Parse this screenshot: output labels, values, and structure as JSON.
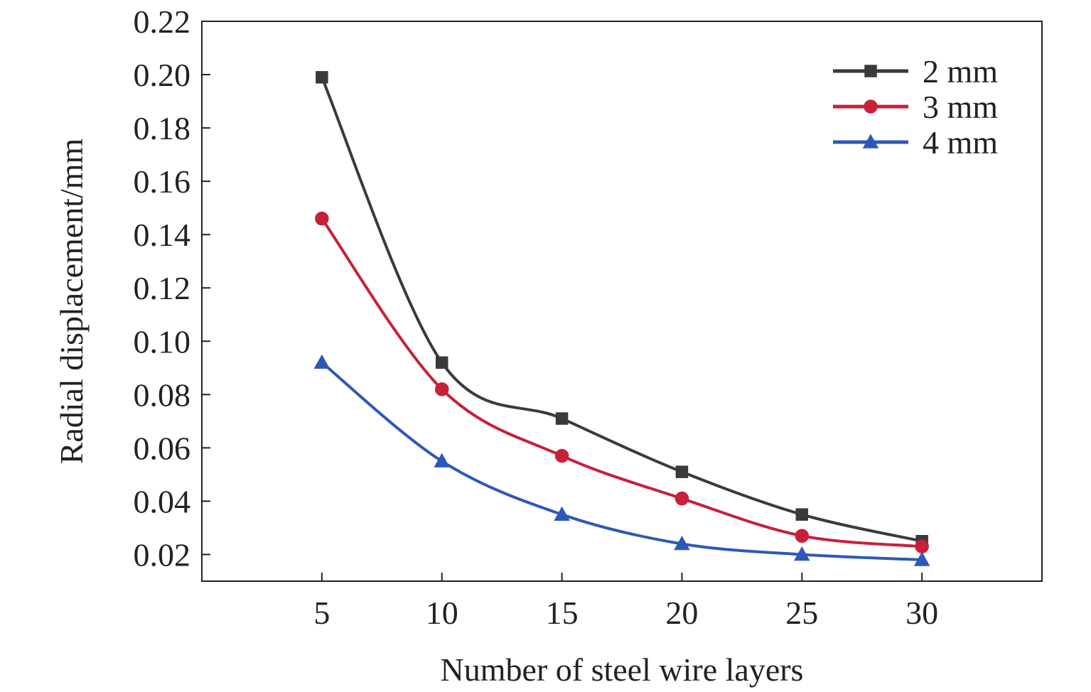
{
  "chart_data": {
    "type": "line",
    "title": "",
    "xlabel": "Number of steel wire layers",
    "ylabel": "Radial displacement/mm",
    "x": [
      5,
      10,
      15,
      20,
      25,
      30
    ],
    "xticks": [
      "5",
      "10",
      "15",
      "20",
      "25",
      "30"
    ],
    "xlim": [
      0,
      35
    ],
    "ylim": [
      0.01,
      0.22
    ],
    "yticks": [
      "0.02",
      "0.04",
      "0.06",
      "0.08",
      "0.10",
      "0.12",
      "0.14",
      "0.16",
      "0.18",
      "0.20",
      "0.22"
    ],
    "grid": false,
    "legend_position": "top-right",
    "series": [
      {
        "name": "2 mm",
        "values": [
          0.199,
          0.092,
          0.071,
          0.051,
          0.035,
          0.025
        ],
        "color": "#3a3a3a",
        "marker": "square"
      },
      {
        "name": "3 mm",
        "values": [
          0.146,
          0.082,
          0.057,
          0.041,
          0.027,
          0.023
        ],
        "color": "#c8203a",
        "marker": "circle"
      },
      {
        "name": "4 mm",
        "values": [
          0.092,
          0.055,
          0.035,
          0.024,
          0.02,
          0.018
        ],
        "color": "#2e58b8",
        "marker": "triangle"
      }
    ]
  }
}
